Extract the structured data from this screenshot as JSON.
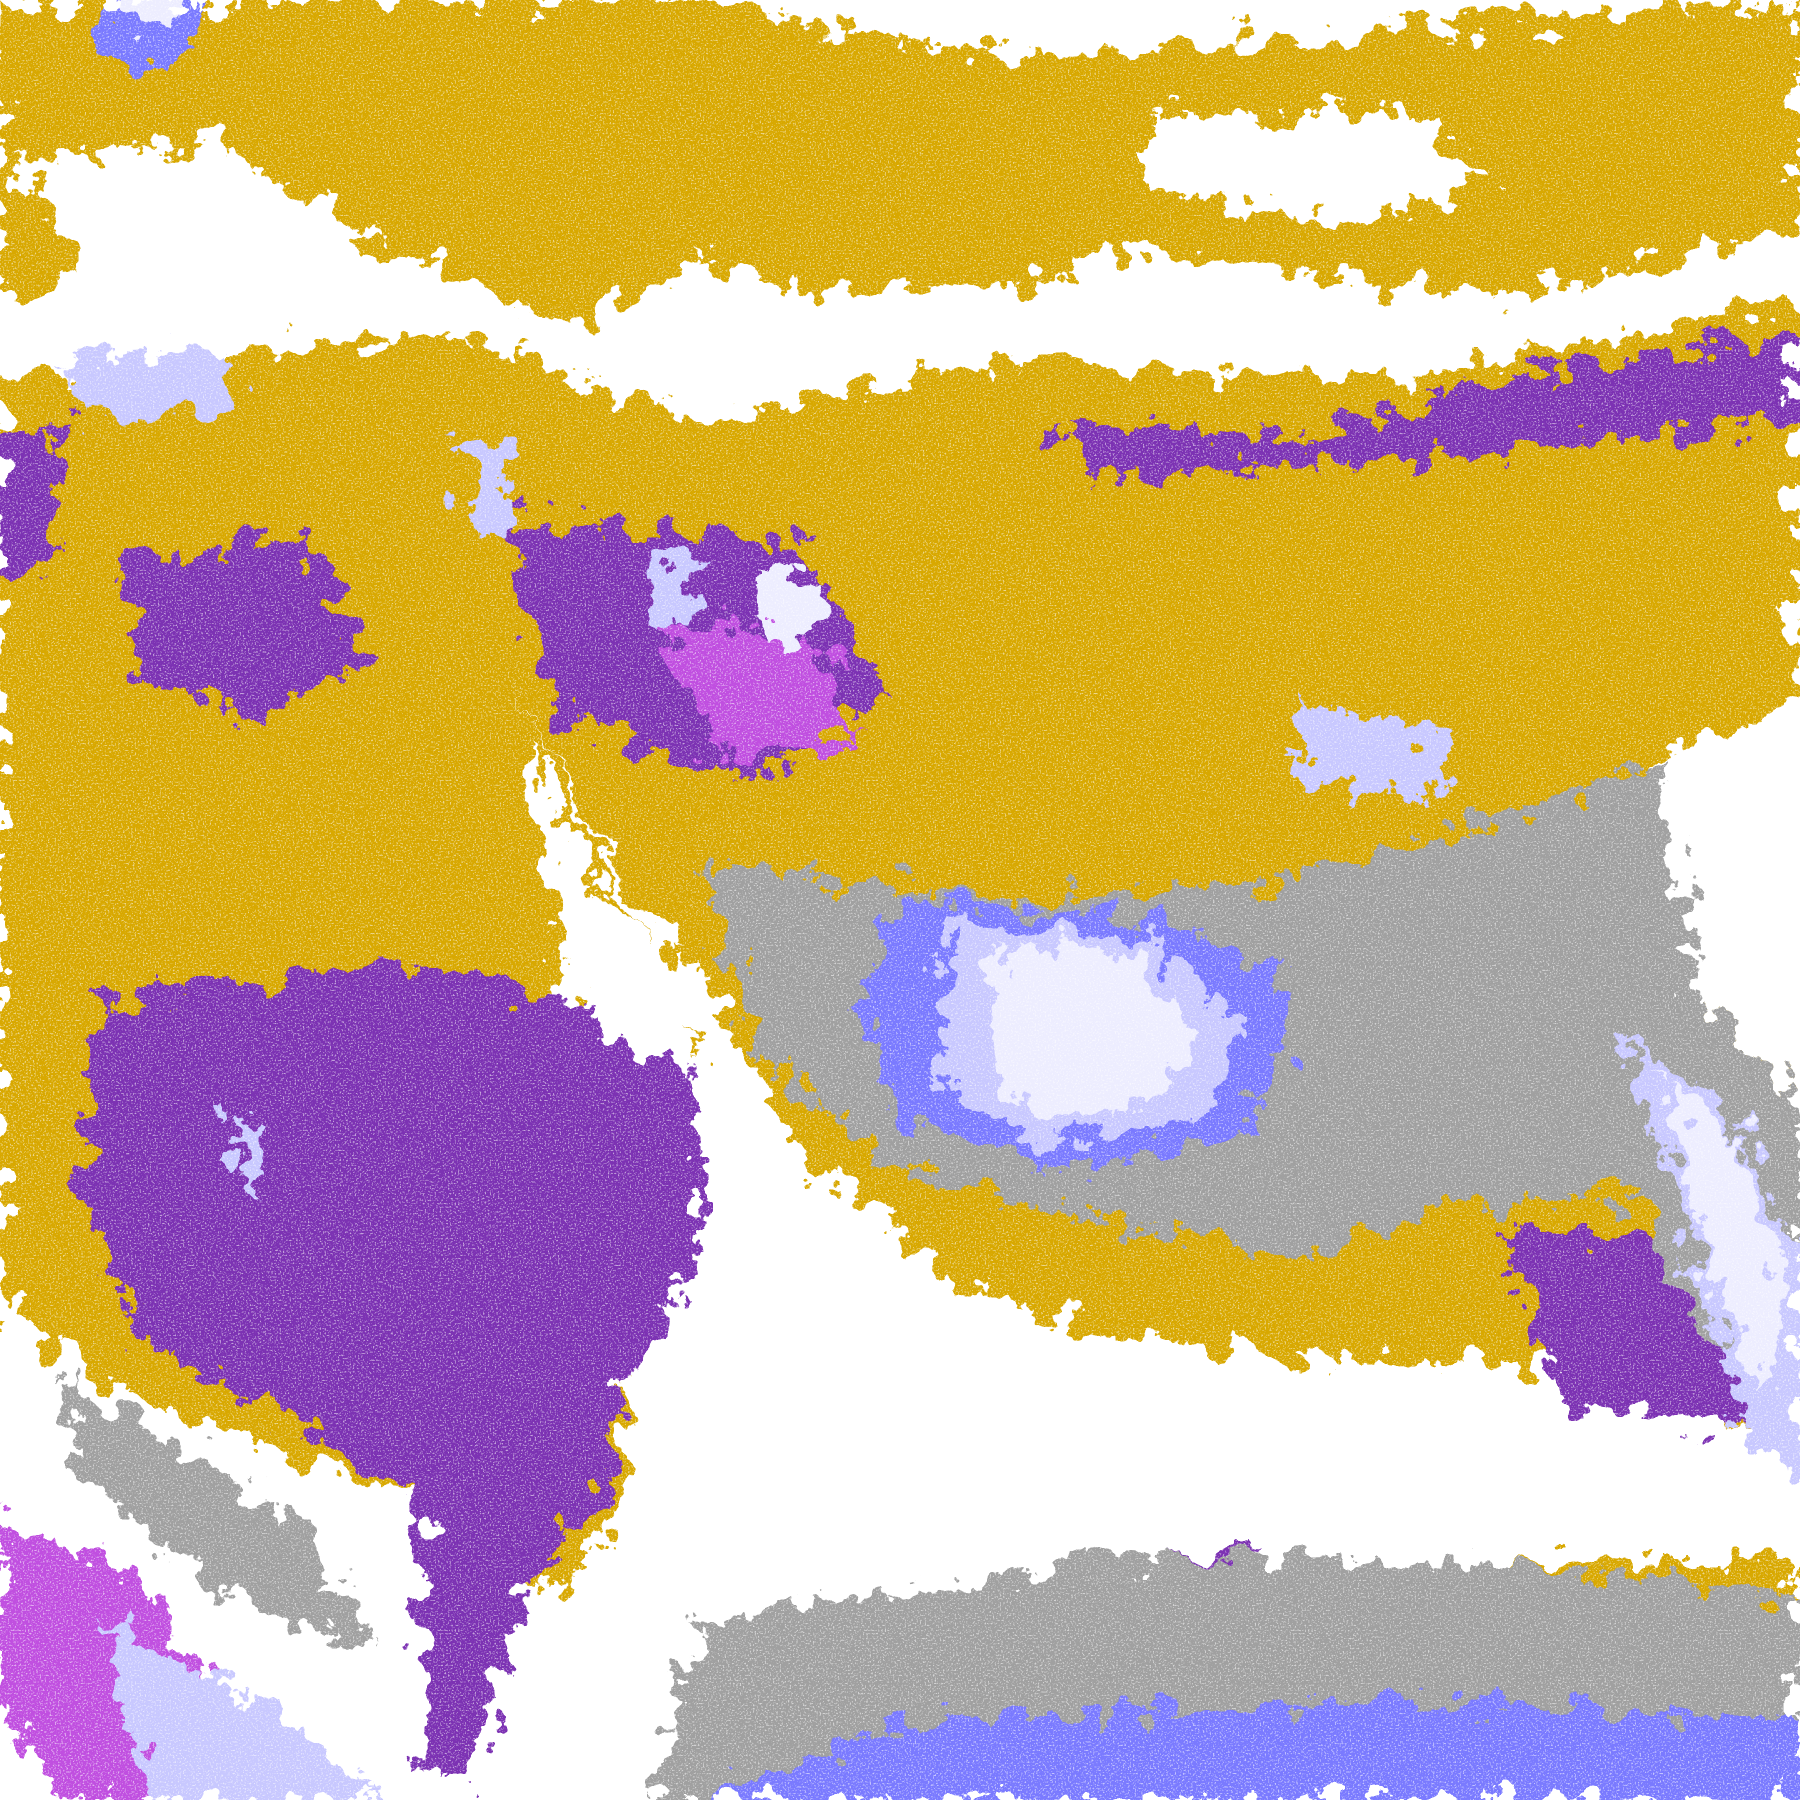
{
  "image": {
    "kind": "false-color satellite cloud imagery",
    "palette": {
      "clear": "#ffffff",
      "gold": "#d8a800",
      "dark_gold": "#c09000",
      "purple": "#7b33b3",
      "magenta": "#c050e0",
      "periwinkle": "#7a7aff",
      "lavender": "#c8c8ff",
      "pale_lavender": "#ededff",
      "gray": "#a0a0a0",
      "light_gray": "#c0c0c0"
    }
  }
}
